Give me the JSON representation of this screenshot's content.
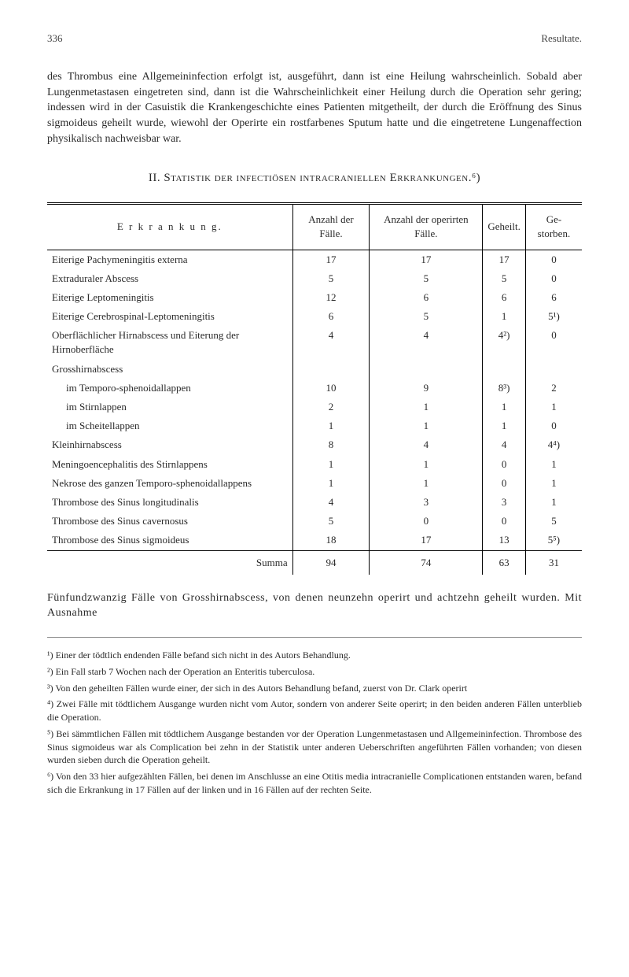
{
  "header": {
    "page_number": "336",
    "running_title": "Resultate."
  },
  "intro_paragraph": "des Thrombus eine Allgemeininfection erfolgt ist, ausgeführt, dann ist eine Heilung wahrscheinlich. Sobald aber Lungenmetastasen eingetreten sind, dann ist die Wahrscheinlichkeit einer Heilung durch die Operation sehr gering; indessen wird in der Casuistik die Krankengeschichte eines Patienten mitgetheilt, der durch die Eröffnung des Sinus sigmoideus geheilt wurde, wiewohl der Operirte ein rostfarbenes Sputum hatte und die eingetretene Lungenaffection physikalisch nachweisbar war.",
  "section_heading": "II. Statistik der infectiösen intracraniellen Erkrankungen.⁶)",
  "table": {
    "columns": {
      "erkrankung": "E r k r a n k u n g.",
      "anzahl_faelle": "Anzahl der Fälle.",
      "anzahl_operirten": "Anzahl der operirten Fälle.",
      "geheilt": "Geheilt.",
      "gestorben": "Ge-storben."
    },
    "rows": [
      {
        "label": "Eiterige Pachymeningitis externa",
        "indent": false,
        "c1": "17",
        "c2": "17",
        "c3": "17",
        "c4": "0"
      },
      {
        "label": "Extraduraler Abscess",
        "indent": false,
        "c1": "5",
        "c2": "5",
        "c3": "5",
        "c4": "0"
      },
      {
        "label": "Eiterige Leptomeningitis",
        "indent": false,
        "c1": "12",
        "c2": "6",
        "c3": "6",
        "c4": "6"
      },
      {
        "label": "Eiterige Cerebrospinal-Leptomeningitis",
        "indent": false,
        "c1": "6",
        "c2": "5",
        "c3": "1",
        "c4": "5¹)"
      },
      {
        "label": "Oberflächlicher Hirnabscess und Eiterung der Hirnoberfläche",
        "indent": false,
        "c1": "4",
        "c2": "4",
        "c3": "4²)",
        "c4": "0"
      },
      {
        "label": "Grosshirnabscess",
        "indent": false,
        "c1": "",
        "c2": "",
        "c3": "",
        "c4": ""
      },
      {
        "label": "im Temporo-sphenoidallappen",
        "indent": true,
        "c1": "10",
        "c2": "9",
        "c3": "8³)",
        "c4": "2"
      },
      {
        "label": "im Stirnlappen",
        "indent": true,
        "c1": "2",
        "c2": "1",
        "c3": "1",
        "c4": "1"
      },
      {
        "label": "im Scheitellappen",
        "indent": true,
        "c1": "1",
        "c2": "1",
        "c3": "1",
        "c4": "0"
      },
      {
        "label": "Kleinhirnabscess",
        "indent": false,
        "c1": "8",
        "c2": "4",
        "c3": "4",
        "c4": "4⁴)"
      },
      {
        "label": "Meningoencephalitis des Stirnlappens",
        "indent": false,
        "c1": "1",
        "c2": "1",
        "c3": "0",
        "c4": "1"
      },
      {
        "label": "Nekrose des ganzen Temporo-sphenoidallappens",
        "indent": false,
        "c1": "1",
        "c2": "1",
        "c3": "0",
        "c4": "1"
      },
      {
        "label": "Thrombose des Sinus longitudinalis",
        "indent": false,
        "c1": "4",
        "c2": "3",
        "c3": "3",
        "c4": "1"
      },
      {
        "label": "Thrombose des Sinus cavernosus",
        "indent": false,
        "c1": "5",
        "c2": "0",
        "c3": "0",
        "c4": "5"
      },
      {
        "label": "Thrombose des Sinus sigmoideus",
        "indent": false,
        "c1": "18",
        "c2": "17",
        "c3": "13",
        "c4": "5⁵)"
      }
    ],
    "summa": {
      "label": "Summa",
      "c1": "94",
      "c2": "74",
      "c3": "63",
      "c4": "31"
    }
  },
  "after_table": "Fünfundzwanzig Fälle von Grosshirnabscess, von denen neunzehn operirt und achtzehn geheilt wurden. Mit Ausnahme",
  "footnotes": [
    "¹) Einer der tödtlich endenden Fälle befand sich nicht in des Autors Behandlung.",
    "²) Ein Fall starb 7 Wochen nach der Operation an Enteritis tuberculosa.",
    "³) Von den geheilten Fällen wurde einer, der sich in des Autors Behandlung befand, zuerst von Dr. Clark operirt",
    "⁴) Zwei Fälle mit tödtlichem Ausgange wurden nicht vom Autor, sondern von anderer Seite operirt; in den beiden anderen Fällen unterblieb die Operation.",
    "⁵) Bei sämmtlichen Fällen mit tödtlichem Ausgange bestanden vor der Operation Lungenmetastasen und Allgemeininfection. Thrombose des Sinus sigmoideus war als Complication bei zehn in der Statistik unter anderen Ueberschriften angeführten Fällen vorhanden; von diesen wurden sieben durch die Operation geheilt.",
    "⁶) Von den 33 hier aufgezählten Fällen, bei denen im Anschlusse an eine Otitis media intracranielle Complicationen entstanden waren, befand sich die Erkrankung in 17 Fällen auf der linken und in 16 Fällen auf der rechten Seite."
  ]
}
